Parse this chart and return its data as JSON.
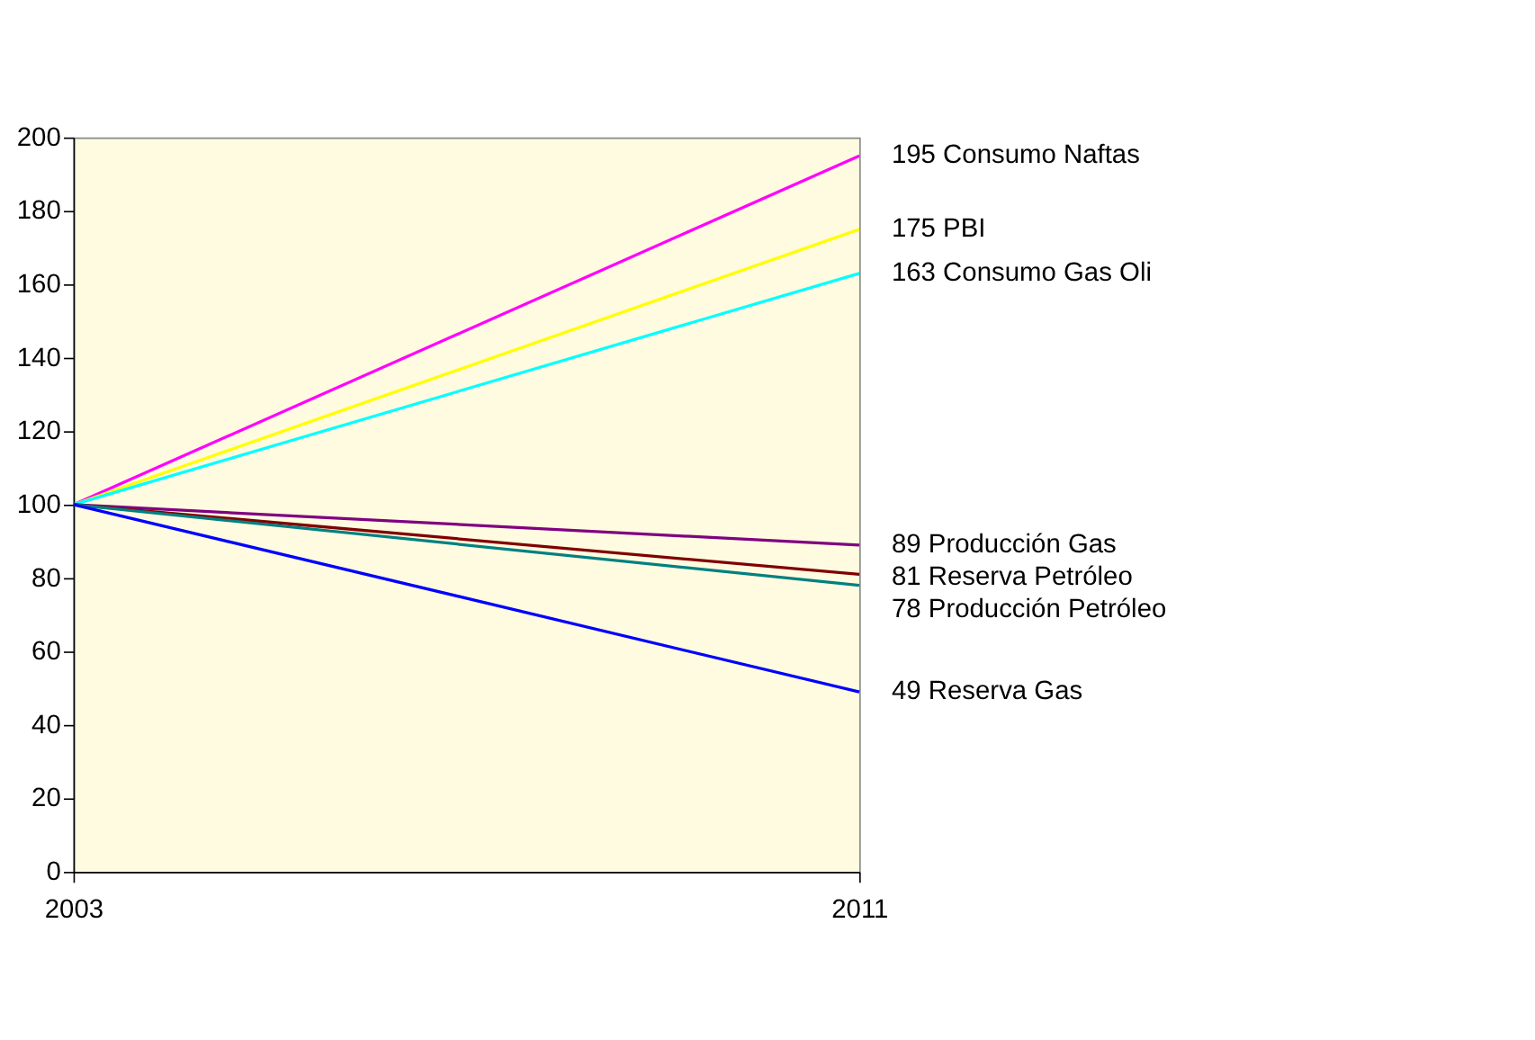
{
  "chart_data": {
    "type": "line",
    "x": [
      2003,
      2011
    ],
    "xlim": [
      2003,
      2011
    ],
    "xticks": [
      2003,
      2011
    ],
    "ylim": [
      0,
      200
    ],
    "yticks": [
      0,
      20,
      40,
      60,
      80,
      100,
      120,
      140,
      160,
      180,
      200
    ],
    "grid": false,
    "legend": false,
    "marker": "none",
    "line_style": "solid",
    "series": [
      {
        "name": "Consumo Naftas",
        "color": "#ff00ff",
        "values": [
          100,
          195
        ],
        "value_labels": [
          null,
          "195"
        ]
      },
      {
        "name": "PBI",
        "color": "#ffff00",
        "values": [
          100,
          175
        ],
        "value_labels": [
          null,
          "175"
        ]
      },
      {
        "name": "Consumo Gas Oli",
        "color": "#00ffff",
        "values": [
          100,
          163
        ],
        "value_labels": [
          null,
          "163"
        ]
      },
      {
        "name": "Producción Gas",
        "color": "#800080",
        "values": [
          100,
          89
        ],
        "value_labels": [
          null,
          "89"
        ]
      },
      {
        "name": "Reserva  Petróleo",
        "color": "#800000",
        "values": [
          100,
          81
        ],
        "value_labels": [
          null,
          "81"
        ]
      },
      {
        "name": "Producción Petróleo",
        "color": "#008080",
        "values": [
          100,
          78
        ],
        "value_labels": [
          null,
          "78"
        ]
      },
      {
        "name": "Reserva  Gas",
        "color": "#0000ff",
        "values": [
          100,
          49
        ],
        "value_labels": [
          null,
          "49"
        ]
      }
    ]
  }
}
